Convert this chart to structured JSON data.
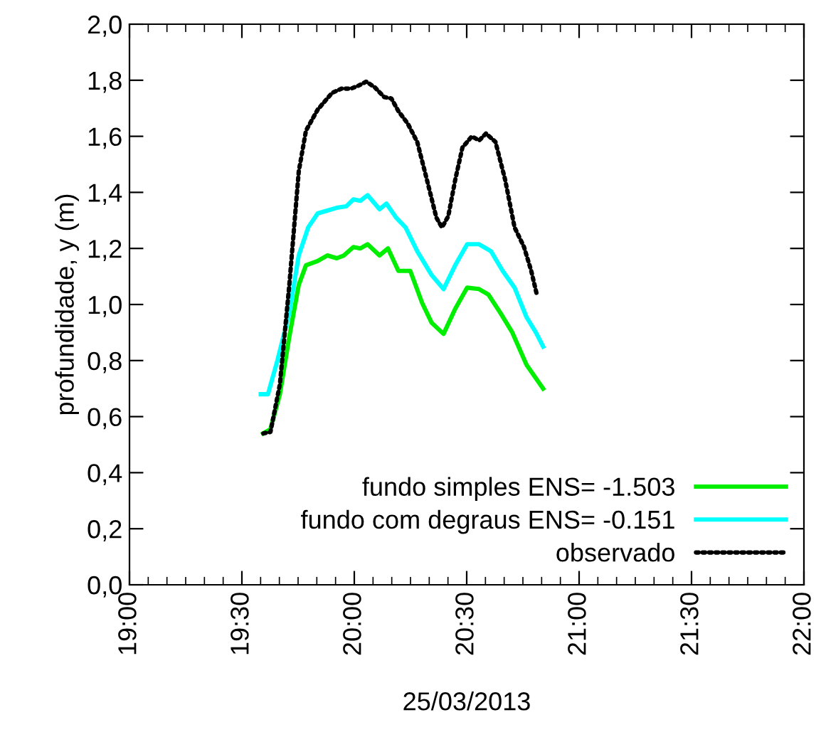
{
  "chart_data": {
    "type": "line",
    "xlabel": "25/03/2013",
    "ylabel": "profundidade, y (m)",
    "xlim": [
      19.0,
      22.0
    ],
    "xticks": [
      {
        "value": 19.0,
        "label": "19:00"
      },
      {
        "value": 19.5,
        "label": "19:30"
      },
      {
        "value": 20.0,
        "label": "20:00"
      },
      {
        "value": 20.5,
        "label": "20:30"
      },
      {
        "value": 21.0,
        "label": "21:00"
      },
      {
        "value": 21.5,
        "label": "21:30"
      },
      {
        "value": 22.0,
        "label": "22:00"
      }
    ],
    "ylim": [
      0,
      2.0
    ],
    "yticks": [
      {
        "value": 0,
        "label": "0,0"
      },
      {
        "value": 0.2,
        "label": "0,2"
      },
      {
        "value": 0.4,
        "label": "0,4"
      },
      {
        "value": 0.6,
        "label": "0,6"
      },
      {
        "value": 0.8,
        "label": "0,8"
      },
      {
        "value": 1.0,
        "label": "1,0"
      },
      {
        "value": 1.2,
        "label": "1,2"
      },
      {
        "value": 1.4,
        "label": "1,4"
      },
      {
        "value": 1.6,
        "label": "1,6"
      },
      {
        "value": 1.8,
        "label": "1,8"
      },
      {
        "value": 2.0,
        "label": "2,0"
      }
    ],
    "grid": false,
    "legend": "bottom right",
    "marker": "none",
    "series": [
      {
        "name": "fundo simples ENS= -1.503",
        "color": "#00ee00",
        "line_style": "solid",
        "x": [
          19.595,
          19.627,
          19.669,
          19.711,
          19.753,
          19.785,
          19.837,
          19.88,
          19.922,
          19.954,
          19.996,
          20.027,
          20.059,
          20.112,
          20.15,
          20.196,
          20.249,
          20.302,
          20.344,
          20.397,
          20.449,
          20.502,
          20.555,
          20.597,
          20.65,
          20.703,
          20.766,
          20.84
        ],
        "values": [
          0.54,
          0.555,
          0.68,
          0.885,
          1.07,
          1.14,
          1.155,
          1.175,
          1.165,
          1.175,
          1.205,
          1.2,
          1.215,
          1.175,
          1.2,
          1.12,
          1.12,
          1.005,
          0.935,
          0.895,
          0.985,
          1.06,
          1.055,
          1.035,
          0.97,
          0.9,
          0.785,
          0.7
        ]
      },
      {
        "name": "fundo com degraus ENS= -0.151",
        "color": "#00ffff",
        "line_style": "solid",
        "x": [
          19.584,
          19.616,
          19.658,
          19.711,
          19.753,
          19.795,
          19.837,
          19.88,
          19.922,
          19.964,
          19.996,
          20.027,
          20.059,
          20.112,
          20.143,
          20.186,
          20.228,
          20.28,
          20.344,
          20.397,
          20.449,
          20.502,
          20.555,
          20.608,
          20.66,
          20.713,
          20.766,
          20.808,
          20.84
        ],
        "values": [
          0.68,
          0.68,
          0.8,
          0.97,
          1.175,
          1.275,
          1.325,
          1.335,
          1.345,
          1.35,
          1.375,
          1.37,
          1.39,
          1.34,
          1.36,
          1.31,
          1.275,
          1.19,
          1.105,
          1.055,
          1.14,
          1.215,
          1.215,
          1.19,
          1.12,
          1.06,
          0.955,
          0.9,
          0.85
        ]
      },
      {
        "name": "observado",
        "color": "#000000",
        "line_style": "dotted",
        "x": [
          19.595,
          19.627,
          19.669,
          19.711,
          19.753,
          19.785,
          19.837,
          19.901,
          19.943,
          19.985,
          20.017,
          20.053,
          20.091,
          20.133,
          20.165,
          20.196,
          20.238,
          20.28,
          20.323,
          20.365,
          20.39,
          20.418,
          20.449,
          20.481,
          20.523,
          20.555,
          20.586,
          20.628,
          20.671,
          20.713,
          20.755,
          20.787,
          20.812
        ],
        "values": [
          0.54,
          0.545,
          0.715,
          1.07,
          1.475,
          1.62,
          1.695,
          1.755,
          1.77,
          1.77,
          1.78,
          1.795,
          1.775,
          1.74,
          1.735,
          1.69,
          1.645,
          1.58,
          1.445,
          1.31,
          1.275,
          1.315,
          1.445,
          1.56,
          1.6,
          1.585,
          1.61,
          1.58,
          1.445,
          1.275,
          1.205,
          1.12,
          1.035
        ]
      }
    ]
  }
}
